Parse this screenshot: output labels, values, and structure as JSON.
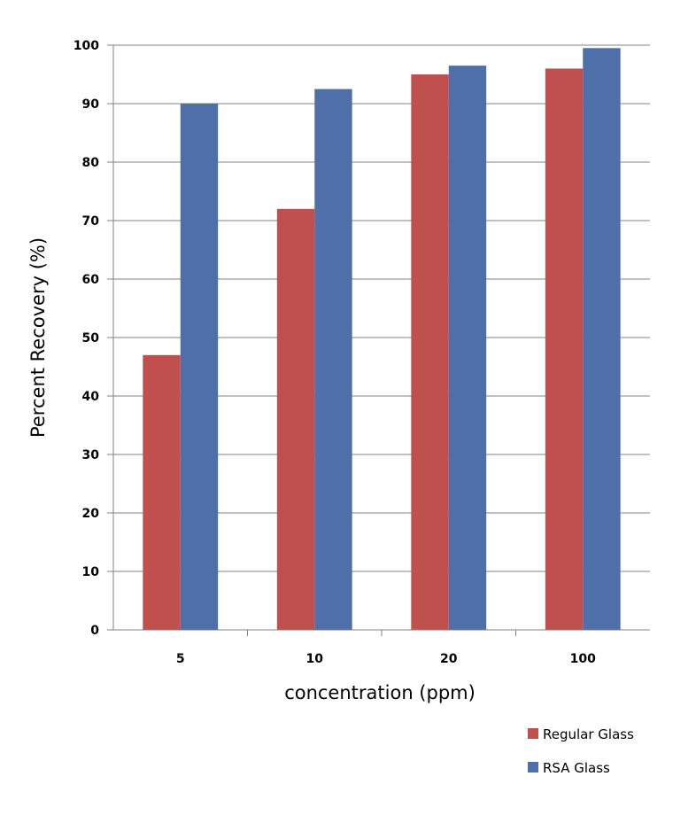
{
  "chart_data": {
    "type": "bar",
    "title": "",
    "xlabel": "concentration (ppm)",
    "ylabel": "Percent Recovery (%)",
    "categories": [
      "5",
      "10",
      "20",
      "100"
    ],
    "series": [
      {
        "name": "Regular Glass",
        "color": "#c0504d",
        "values": [
          47,
          72,
          95,
          96
        ]
      },
      {
        "name": "RSA Glass",
        "color": "#4f6fa8",
        "values": [
          90,
          92.5,
          96.5,
          99.5
        ]
      }
    ],
    "ylim": [
      0,
      100
    ],
    "yticks": [
      "0",
      "10",
      "20",
      "30",
      "40",
      "50",
      "60",
      "70",
      "80",
      "90",
      "100"
    ],
    "grid": true,
    "legend_position": "bottom-right"
  }
}
